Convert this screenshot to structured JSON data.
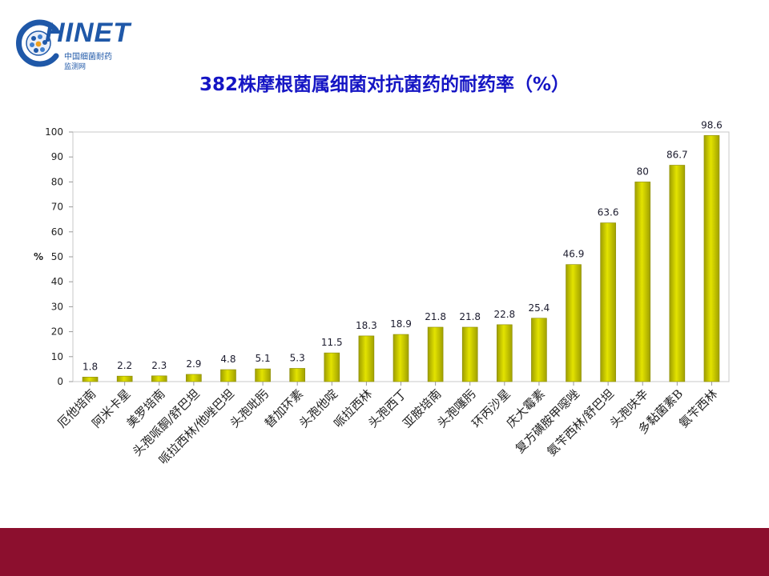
{
  "logo": {
    "text": "HINET",
    "subtitle_line1": "中国细菌耐药",
    "subtitle_line2": "监测网",
    "icon": "chinet-globe-icon"
  },
  "colors": {
    "title": "#1515c4",
    "bar_fill": "#e3e300",
    "bar_edge": "#8a8a00",
    "footer": "#8c0f2e",
    "logo": "#1f58a8"
  },
  "chart_data": {
    "type": "bar",
    "title": "382株摩根菌属细菌对抗菌药的耐药率（%）",
    "ylabel": "%",
    "xlabel": "",
    "ylim": [
      0,
      100
    ],
    "yticks": [
      0,
      10,
      20,
      30,
      40,
      50,
      60,
      70,
      80,
      90,
      100
    ],
    "grid": false,
    "legend": "none",
    "categories": [
      "厄他培南",
      "阿米卡星",
      "美罗培南",
      "头孢哌酮/舒巴坦",
      "哌拉西林/他唑巴坦",
      "头孢吡肟",
      "替加环素",
      "头孢他啶",
      "哌拉西林",
      "头孢西丁",
      "亚胺培南",
      "头孢噻肟",
      "环丙沙星",
      "庆大霉素",
      "复方磺胺甲噁唑",
      "氨苄西林/舒巴坦",
      "头孢呋辛",
      "多黏菌素B",
      "氨苄西林"
    ],
    "values": [
      1.8,
      2.2,
      2.3,
      2.9,
      4.8,
      5.1,
      5.3,
      11.5,
      18.3,
      18.9,
      21.8,
      21.8,
      22.8,
      25.4,
      46.9,
      63.6,
      80,
      86.7,
      98.6
    ],
    "value_labels": [
      "1.8",
      "2.2",
      "2.3",
      "2.9",
      "4.8",
      "5.1",
      "5.3",
      "11.5",
      "18.3",
      "18.9",
      "21.8",
      "21.8",
      "22.8",
      "25.4",
      "46.9",
      "63.6",
      "80",
      "86.7",
      "98.6"
    ]
  }
}
